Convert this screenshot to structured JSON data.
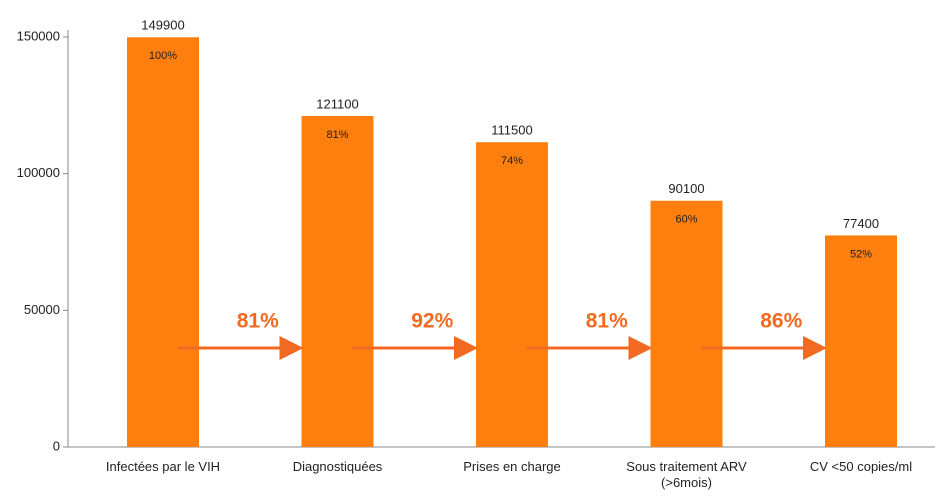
{
  "chart_data": {
    "type": "bar",
    "categories": [
      "Infectées par le VIH",
      "Diagnostiquées",
      "Prises en charge",
      "Sous traitement ARV\n(>6mois)",
      "CV <50 copies/ml"
    ],
    "values": [
      149900,
      121100,
      111500,
      90100,
      77400
    ],
    "inner_labels": [
      "100%",
      "81%",
      "74%",
      "60%",
      "52%"
    ],
    "transition_labels": [
      "81%",
      "92%",
      "81%",
      "86%"
    ],
    "color": "#ff7f0e",
    "arrow_color": "#f26a22",
    "ylim": [
      0,
      150000
    ],
    "yticks": [
      0,
      50000,
      100000,
      150000
    ],
    "grid": false
  }
}
